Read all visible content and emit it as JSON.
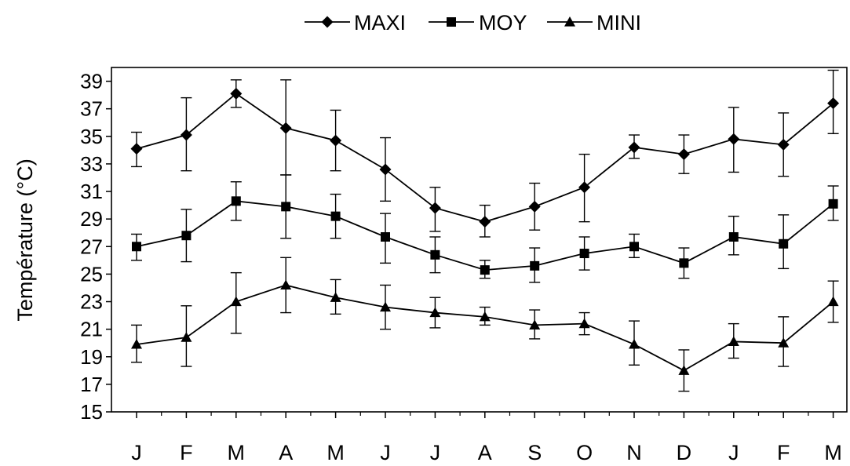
{
  "chart_data": {
    "type": "line",
    "title": "",
    "xlabel": "",
    "ylabel": "Température (°C)",
    "categories": [
      "J",
      "F",
      "M",
      "A",
      "M",
      "J",
      "J",
      "A",
      "S",
      "O",
      "N",
      "D",
      "J",
      "F",
      "M"
    ],
    "ylim": [
      15,
      40
    ],
    "yticks": [
      15,
      17,
      19,
      21,
      23,
      25,
      27,
      29,
      31,
      33,
      35,
      37,
      39
    ],
    "grid": false,
    "legend_position": "top-center",
    "series": [
      {
        "name": "MAXI",
        "marker": "diamond",
        "values": [
          34.1,
          35.1,
          38.1,
          35.6,
          34.7,
          32.6,
          29.8,
          28.8,
          29.9,
          31.3,
          34.2,
          33.7,
          34.8,
          34.4,
          37.4
        ],
        "err_low": [
          32.8,
          32.5,
          37.1,
          32.2,
          32.5,
          30.3,
          28.1,
          27.7,
          28.2,
          28.8,
          33.4,
          32.3,
          32.4,
          32.1,
          35.2
        ],
        "err_high": [
          35.3,
          37.8,
          39.1,
          39.1,
          36.9,
          34.9,
          31.3,
          30.0,
          31.6,
          33.7,
          35.1,
          35.1,
          37.1,
          36.7,
          39.8
        ]
      },
      {
        "name": "MOY",
        "marker": "square",
        "values": [
          27.0,
          27.8,
          30.3,
          29.9,
          29.2,
          27.7,
          26.4,
          25.3,
          25.6,
          26.5,
          27.0,
          25.8,
          27.7,
          27.2,
          30.1
        ],
        "err_low": [
          26.0,
          25.9,
          28.9,
          27.6,
          27.6,
          25.8,
          25.1,
          24.7,
          24.4,
          25.3,
          26.2,
          24.7,
          26.4,
          25.4,
          28.9
        ],
        "err_high": [
          27.9,
          29.7,
          31.7,
          32.2,
          30.8,
          29.4,
          27.7,
          26.0,
          26.9,
          27.7,
          27.9,
          26.9,
          29.2,
          29.3,
          31.4
        ]
      },
      {
        "name": "MINI",
        "marker": "triangle",
        "values": [
          19.9,
          20.4,
          23.0,
          24.2,
          23.3,
          22.6,
          22.2,
          21.9,
          21.3,
          21.4,
          19.9,
          18.0,
          20.1,
          20.0,
          23.0
        ],
        "err_low": [
          18.6,
          18.3,
          20.7,
          22.2,
          22.1,
          21.0,
          21.1,
          21.3,
          20.3,
          20.6,
          18.4,
          16.5,
          18.9,
          18.3,
          21.5
        ],
        "err_high": [
          21.3,
          22.7,
          25.1,
          26.2,
          24.6,
          24.2,
          23.3,
          22.6,
          22.4,
          22.2,
          21.6,
          19.5,
          21.4,
          21.9,
          24.5
        ]
      }
    ]
  }
}
